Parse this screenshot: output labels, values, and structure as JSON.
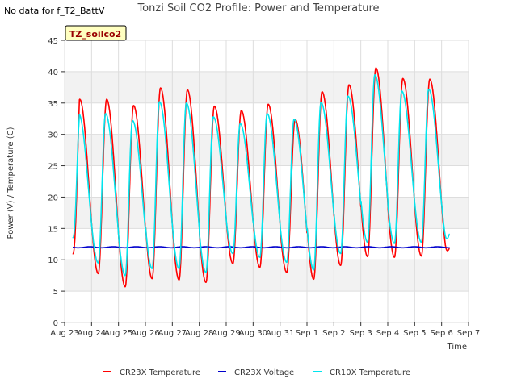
{
  "header": {
    "no_data_text": "No data for f_T2_BattV"
  },
  "chart_data": {
    "type": "line",
    "title": "Tonzi Soil CO2 Profile: Power and Temperature",
    "xlabel": "Time",
    "ylabel": "Power (V) / Temperature (C)",
    "site_label": "TZ_soilco2",
    "x_ticks": [
      "Aug 23",
      "Aug 24",
      "Aug 25",
      "Aug 26",
      "Aug 27",
      "Aug 28",
      "Aug 29",
      "Aug 30",
      "Aug 31",
      "Sep 1",
      "Sep 2",
      "Sep 3",
      "Sep 4",
      "Sep 5",
      "Sep 6",
      "Sep 7"
    ],
    "x_range_days": [
      0,
      15
    ],
    "y_ticks": [
      0,
      5,
      10,
      15,
      20,
      25,
      30,
      35,
      40,
      45
    ],
    "ylim": [
      0,
      45
    ],
    "grid": true,
    "legend_position": "bottom",
    "series": [
      {
        "name": "CR23X Temperature",
        "color": "#ff0000",
        "daily_max": [
          35.6,
          34.6,
          37.4,
          37.1,
          34.5,
          33.8,
          34.8,
          32.4,
          36.8,
          37.9,
          40.6,
          38.9,
          38.8,
          38.5
        ],
        "daily_min": [
          7.8,
          5.7,
          7.0,
          6.8,
          6.4,
          9.4,
          8.8,
          8.0,
          6.9,
          9.1,
          10.5,
          10.4,
          10.6,
          10.8
        ],
        "start_value": 11.0,
        "end_value": 11.8
      },
      {
        "name": "CR23X Voltage",
        "color": "#0000cc",
        "value": 12.0
      },
      {
        "name": "CR10X Temperature",
        "color": "#00e5ee",
        "daily_max": [
          33.3,
          32.2,
          35.2,
          35.0,
          32.8,
          31.7,
          33.3,
          32.4,
          35.1,
          36.1,
          39.5,
          36.9,
          37.2,
          38.0
        ],
        "daily_min": [
          9.5,
          7.5,
          8.6,
          8.6,
          8.0,
          11.0,
          10.4,
          9.6,
          8.4,
          11.0,
          12.8,
          12.6,
          12.8,
          12.3
        ],
        "start_value": 13.6,
        "end_value": 14.1
      }
    ]
  }
}
